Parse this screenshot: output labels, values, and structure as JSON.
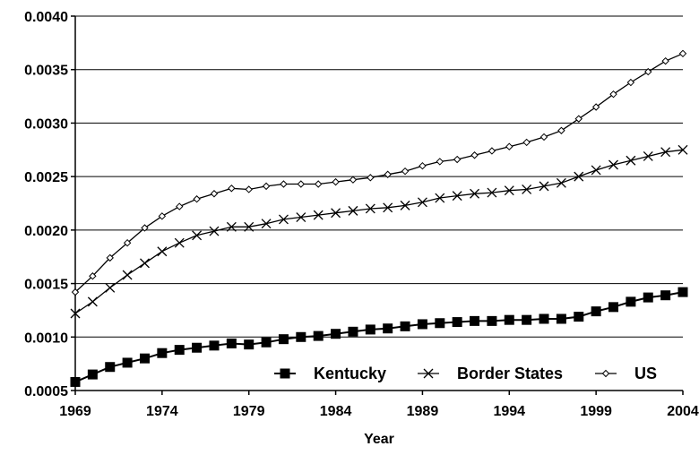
{
  "chart_data": {
    "type": "line",
    "title": "",
    "xlabel": "Year",
    "ylabel": "",
    "xlim": [
      1969,
      2004
    ],
    "ylim": [
      0.0005,
      0.004
    ],
    "yticks": [
      "0.0005",
      "0.0010",
      "0.0015",
      "0.0020",
      "0.0025",
      "0.0030",
      "0.0035",
      "0.0040"
    ],
    "xticks": [
      "1969",
      "1974",
      "1979",
      "1984",
      "1989",
      "1994",
      "1999",
      "2004"
    ],
    "grid": "horizontal",
    "legend_position": "bottom-right",
    "x": [
      1969,
      1970,
      1971,
      1972,
      1973,
      1974,
      1975,
      1976,
      1977,
      1978,
      1979,
      1980,
      1981,
      1982,
      1983,
      1984,
      1985,
      1986,
      1987,
      1988,
      1989,
      1990,
      1991,
      1992,
      1993,
      1994,
      1995,
      1996,
      1997,
      1998,
      1999,
      2000,
      2001,
      2002,
      2003,
      2004
    ],
    "series": [
      {
        "name": "Kentucky",
        "marker": "square",
        "values": [
          0.00058,
          0.00065,
          0.00072,
          0.00076,
          0.0008,
          0.00085,
          0.00088,
          0.0009,
          0.00092,
          0.00094,
          0.00093,
          0.00095,
          0.00098,
          0.001,
          0.00101,
          0.00103,
          0.00105,
          0.00107,
          0.00108,
          0.0011,
          0.00112,
          0.00113,
          0.00114,
          0.00115,
          0.00115,
          0.00116,
          0.00116,
          0.00117,
          0.00117,
          0.00119,
          0.00124,
          0.00128,
          0.00133,
          0.00137,
          0.00139,
          0.00142
        ]
      },
      {
        "name": "Border States",
        "marker": "x",
        "values": [
          0.00122,
          0.00133,
          0.00146,
          0.00158,
          0.00169,
          0.0018,
          0.00188,
          0.00195,
          0.00199,
          0.00203,
          0.00203,
          0.00206,
          0.0021,
          0.00212,
          0.00214,
          0.00216,
          0.00218,
          0.0022,
          0.00221,
          0.00223,
          0.00226,
          0.0023,
          0.00232,
          0.00234,
          0.00235,
          0.00237,
          0.00238,
          0.00241,
          0.00244,
          0.0025,
          0.00256,
          0.00261,
          0.00265,
          0.00269,
          0.00273,
          0.00275
        ]
      },
      {
        "name": "US",
        "marker": "diamond",
        "values": [
          0.00142,
          0.00157,
          0.00174,
          0.00188,
          0.00202,
          0.00213,
          0.00222,
          0.00229,
          0.00234,
          0.00239,
          0.00238,
          0.00241,
          0.00243,
          0.00243,
          0.00243,
          0.00245,
          0.00247,
          0.00249,
          0.00252,
          0.00255,
          0.0026,
          0.00264,
          0.00266,
          0.0027,
          0.00274,
          0.00278,
          0.00282,
          0.00287,
          0.00293,
          0.00304,
          0.00315,
          0.00327,
          0.00338,
          0.00348,
          0.00358,
          0.00365
        ]
      }
    ]
  }
}
